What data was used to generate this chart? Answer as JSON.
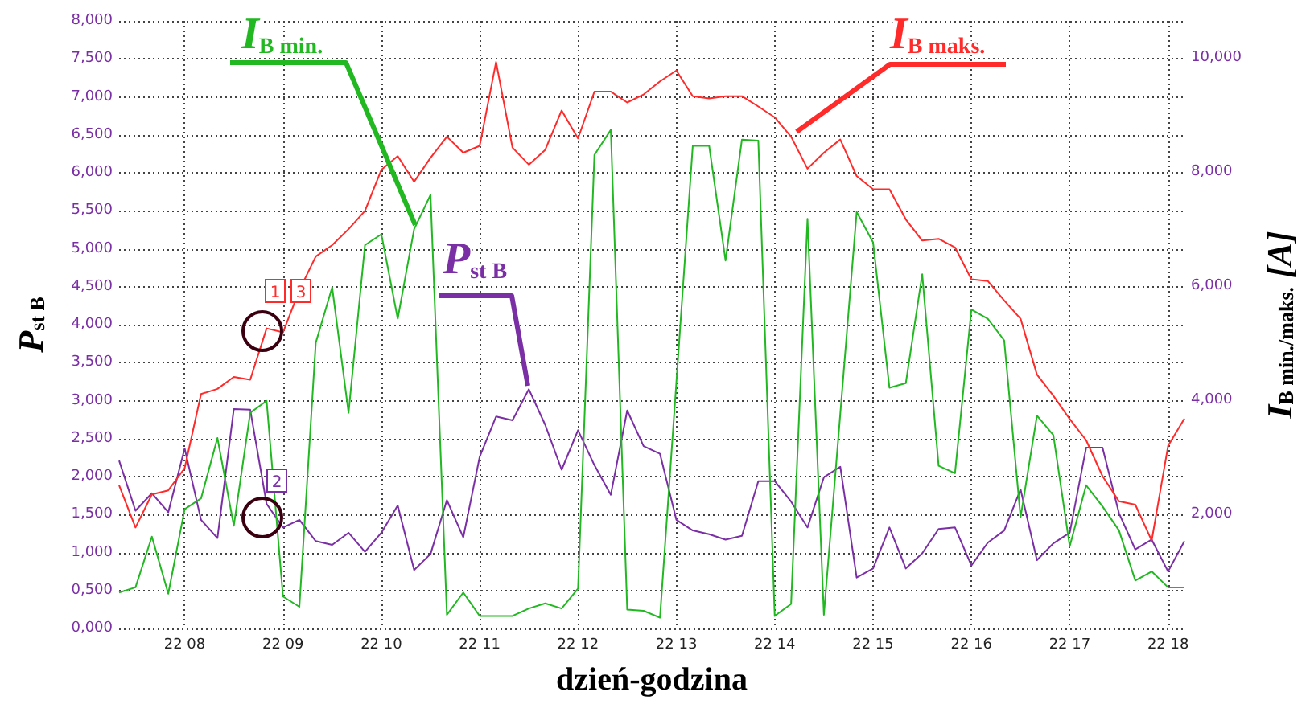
{
  "chart_data": {
    "type": "line",
    "xlabel": "dzień-godzina",
    "ylabel": "P$_{st B}$",
    "y2label": "I$_{B min./maks.}$ [A]",
    "categories": [
      null,
      null,
      null,
      null,
      "22 08",
      null,
      null,
      null,
      null,
      null,
      "22 09",
      null,
      null,
      null,
      null,
      null,
      "22 10",
      null,
      null,
      null,
      null,
      null,
      "22 11",
      null,
      null,
      null,
      null,
      null,
      "22 12",
      null,
      null,
      null,
      null,
      null,
      "22 13",
      null,
      null,
      null,
      null,
      null,
      "22 14",
      null,
      null,
      null,
      null,
      null,
      "22 15",
      null,
      null,
      null,
      null,
      null,
      "22 16",
      null,
      null,
      null,
      null,
      null,
      "22 17",
      null,
      null,
      null,
      null,
      null,
      "22 18",
      null
    ],
    "series": [
      {
        "name": "I$_{B maks.}$",
        "color": "#ff2a2a",
        "axis": "y2",
        "values": [
          2.51,
          1.77,
          2.35,
          2.42,
          2.81,
          4.11,
          4.2,
          4.41,
          4.36,
          5.26,
          5.19,
          5.93,
          6.52,
          6.72,
          7,
          7.32,
          8.04,
          8.28,
          7.83,
          8.25,
          8.62,
          8.34,
          8.46,
          9.93,
          8.43,
          8.13,
          8.39,
          9.08,
          8.59,
          9.41,
          9.41,
          9.22,
          9.36,
          9.59,
          9.78,
          9.33,
          9.29,
          9.33,
          9.33,
          9.15,
          8.96,
          8.62,
          8.06,
          8.34,
          8.57,
          7.93,
          7.7,
          7.7,
          7.17,
          6.8,
          6.83,
          6.68,
          6.12,
          6.09,
          5.75,
          5.43,
          4.45,
          4.08,
          3.67,
          3.3,
          2.67,
          2.23,
          2.17,
          1.54,
          3.2,
          3.68
        ]
      },
      {
        "name": "I$_{B min.}$",
        "color": "#22b822",
        "axis": "y2",
        "values": [
          0.63,
          0.72,
          1.61,
          0.61,
          2.09,
          2.28,
          3.34,
          1.8,
          3.78,
          3.99,
          0.56,
          0.38,
          5.01,
          5.98,
          3.78,
          6.72,
          6.91,
          5.43,
          7,
          7.6,
          0.24,
          0.63,
          0.22,
          0.22,
          0.22,
          0.35,
          0.44,
          0.35,
          0.7,
          8.3,
          8.74,
          0.33,
          0.31,
          0.19,
          4.31,
          8.46,
          8.46,
          6.45,
          8.57,
          8.55,
          0.22,
          0.43,
          7.18,
          0.24,
          3.76,
          7.3,
          6.77,
          4.22,
          4.3,
          6.21,
          2.85,
          2.72,
          5.59,
          5.43,
          5.05,
          1.95,
          3.73,
          3.39,
          1.44,
          2.51,
          2.14,
          1.72,
          0.84,
          1,
          0.72,
          0.72
        ]
      },
      {
        "name": "P$_{st B}$",
        "color": "#7b2fa5",
        "axis": "y",
        "values": [
          2.21,
          1.55,
          1.78,
          1.53,
          2.37,
          1.43,
          1.19,
          2.89,
          2.88,
          1.64,
          1.33,
          1.43,
          1.15,
          1.1,
          1.26,
          1.01,
          1.26,
          1.62,
          0.77,
          0.98,
          1.69,
          1.2,
          2.26,
          2.79,
          2.74,
          3.15,
          2.68,
          2.09,
          2.61,
          2.15,
          1.76,
          2.87,
          2.4,
          2.3,
          1.43,
          1.29,
          1.24,
          1.17,
          1.22,
          1.94,
          1.94,
          1.67,
          1.33,
          1.99,
          2.13,
          0.67,
          0.79,
          1.33,
          0.79,
          0.99,
          1.31,
          1.33,
          0.83,
          1.13,
          1.29,
          1.83,
          0.9,
          1.12,
          1.26,
          2.38,
          2.38,
          1.52,
          1.04,
          1.17,
          0.75,
          1.15
        ]
      }
    ],
    "ylim": [
      0,
      8
    ],
    "yticks": [
      {
        "value": 0,
        "label": "0,000"
      },
      {
        "value": 0.5,
        "label": "0,500"
      },
      {
        "value": 1,
        "label": "1,000"
      },
      {
        "value": 1.5,
        "label": "1,500"
      },
      {
        "value": 2,
        "label": "2,000"
      },
      {
        "value": 2.5,
        "label": "2,500"
      },
      {
        "value": 3,
        "label": "3,000"
      },
      {
        "value": 3.5,
        "label": "3,500"
      },
      {
        "value": 4,
        "label": "4,000"
      },
      {
        "value": 4.5,
        "label": "4,500"
      },
      {
        "value": 5,
        "label": "5,000"
      },
      {
        "value": 5.5,
        "label": "5,500"
      },
      {
        "value": 6,
        "label": "6,000"
      },
      {
        "value": 6.5,
        "label": "6,500"
      },
      {
        "value": 7,
        "label": "7,000"
      },
      {
        "value": 7.5,
        "label": "7,500"
      },
      {
        "value": 8,
        "label": "8,000"
      }
    ],
    "y2lim": [
      0,
      10.65
    ],
    "y2ticks": [
      {
        "value": 2,
        "label": "2,000"
      },
      {
        "value": 4,
        "label": "4,000"
      },
      {
        "value": 6,
        "label": "6,000"
      },
      {
        "value": 8,
        "label": "8,000"
      },
      {
        "value": 10,
        "label": "10,000"
      }
    ],
    "annotations": [
      "1",
      "3",
      "2"
    ],
    "grid": true,
    "legend": false,
    "marker": "none",
    "line_style": "solid"
  }
}
